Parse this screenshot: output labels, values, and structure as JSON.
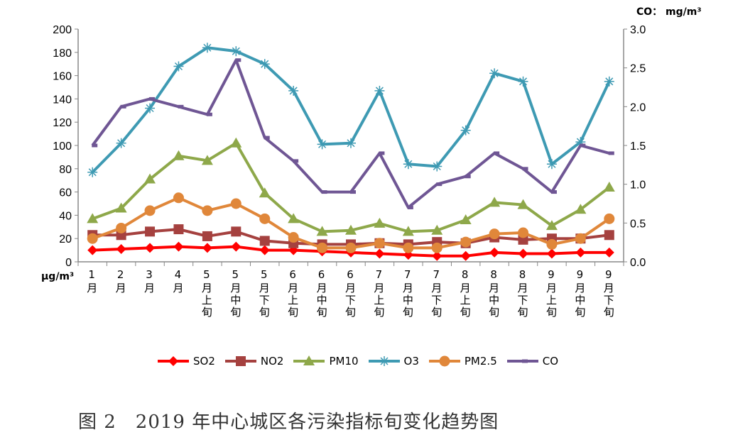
{
  "chart_data": {
    "type": "line",
    "title": "",
    "caption": "图 2　2019 年中心城区各污染指标旬变化趋势图",
    "ylabel_left": "μg/m³",
    "ylabel_right": "CO： mg/m³",
    "ylim_left": [
      0,
      200
    ],
    "ylim_right": [
      0,
      3.0
    ],
    "yticks_left": [
      "0",
      "20",
      "40",
      "60",
      "80",
      "100",
      "120",
      "140",
      "160",
      "180",
      "200"
    ],
    "yticks_right": [
      "0.0",
      "0.5",
      "1.0",
      "1.5",
      "2.0",
      "2.5",
      "3.0"
    ],
    "grid": false,
    "legend_position": "bottom",
    "categories": [
      "1月",
      "2月",
      "3月",
      "4月",
      "5月上旬",
      "5月中旬",
      "5月下旬",
      "6月上旬",
      "6月中旬",
      "6月下旬",
      "7月上旬",
      "7月中旬",
      "7月下旬",
      "8月上旬",
      "8月中旬",
      "8月下旬",
      "9月上旬",
      "9月中旬",
      "9月下旬"
    ],
    "series": [
      {
        "name": "SO2",
        "axis": "left",
        "color": "#ff0000",
        "marker": "diamond",
        "values": [
          10,
          11,
          12,
          13,
          12,
          13,
          10,
          10,
          9,
          8,
          7,
          6,
          5,
          5,
          8,
          7,
          7,
          8,
          8
        ]
      },
      {
        "name": "NO2",
        "axis": "left",
        "color": "#a5413f",
        "marker": "square",
        "values": [
          23,
          23,
          26,
          28,
          22,
          26,
          18,
          16,
          15,
          15,
          16,
          15,
          17,
          16,
          21,
          19,
          20,
          20,
          23
        ]
      },
      {
        "name": "PM10",
        "axis": "left",
        "color": "#8ea84a",
        "marker": "triangle",
        "values": [
          37,
          46,
          71,
          91,
          87,
          102,
          59,
          37,
          26,
          27,
          33,
          26,
          27,
          36,
          51,
          49,
          31,
          45,
          64
        ]
      },
      {
        "name": "O3",
        "axis": "left",
        "color": "#3e9ab3",
        "marker": "star",
        "values": [
          77,
          102,
          132,
          168,
          184,
          181,
          170,
          147,
          101,
          102,
          147,
          84,
          82,
          113,
          162,
          155,
          84,
          103,
          155
        ]
      },
      {
        "name": "PM2.5",
        "axis": "left",
        "color": "#e0873a",
        "marker": "circle",
        "values": [
          20,
          29,
          44,
          55,
          44,
          50,
          37,
          21,
          12,
          12,
          16,
          12,
          12,
          17,
          24,
          25,
          15,
          20,
          37
        ]
      },
      {
        "name": "CO",
        "axis": "right",
        "color": "#6f5694",
        "marker": "dash",
        "values": [
          1.5,
          2.0,
          2.1,
          2.0,
          1.9,
          2.6,
          1.6,
          1.3,
          0.9,
          0.9,
          1.4,
          0.7,
          1.0,
          1.1,
          1.4,
          1.2,
          0.9,
          1.5,
          1.4
        ]
      }
    ]
  }
}
